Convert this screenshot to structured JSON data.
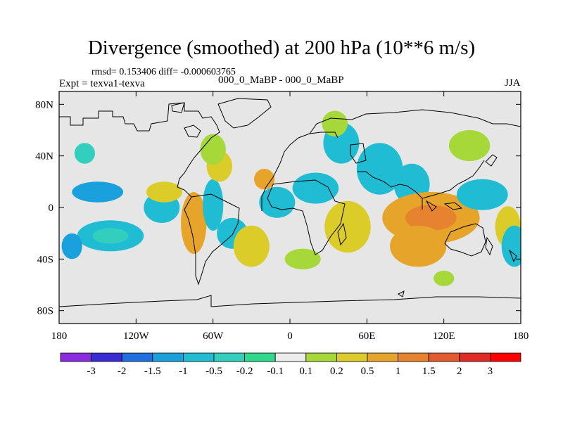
{
  "header": {
    "title": "Divergence (smoothed) at 200 hPa (10**6 m/s)",
    "stats": "rmsd= 0.153406 diff= -0.000603765",
    "experiment": "Expt = texva1-texva",
    "experiment_names": "000_0_MaBP - 000_0_MaBP",
    "season": "JJA"
  },
  "chart_data": {
    "type": "heatmap",
    "title": "Divergence (smoothed) at 200 hPa (10**6 m/s)",
    "xlabel": "",
    "ylabel": "",
    "x_ticks": [
      {
        "value": -180,
        "label": "180"
      },
      {
        "value": -120,
        "label": "120W"
      },
      {
        "value": -60,
        "label": "60W"
      },
      {
        "value": 0,
        "label": "0"
      },
      {
        "value": 60,
        "label": "60E"
      },
      {
        "value": 120,
        "label": "120E"
      },
      {
        "value": 180,
        "label": "180"
      }
    ],
    "y_ticks": [
      {
        "value": 80,
        "label": "80N"
      },
      {
        "value": 40,
        "label": "40N"
      },
      {
        "value": 0,
        "label": "0"
      },
      {
        "value": -40,
        "label": "40S"
      },
      {
        "value": -80,
        "label": "80S"
      }
    ],
    "xlim": [
      -180,
      180
    ],
    "ylim": [
      -90,
      90
    ],
    "colorbar": {
      "labels": [
        "-3",
        "-2",
        "-1.5",
        "-1",
        "-0.5",
        "-0.2",
        "-0.1",
        "0.1",
        "0.2",
        "0.5",
        "1",
        "1.5",
        "2",
        "3"
      ],
      "colors": [
        "#8a2be2",
        "#3b2bd6",
        "#1f6fe0",
        "#1aa0dc",
        "#20bcd4",
        "#33cfbe",
        "#2fd88c",
        "#ececec",
        "#a6d83a",
        "#dccc2a",
        "#e6a42a",
        "#e7822f",
        "#e45a2f",
        "#e02a26",
        "#ff0000"
      ]
    },
    "blobs": [
      {
        "lon": -150,
        "lat": 12,
        "rx": 20,
        "ry": 4,
        "level": 3
      },
      {
        "lon": -140,
        "lat": -22,
        "rx": 26,
        "ry": 6,
        "level": 4
      },
      {
        "lon": -140,
        "lat": -22,
        "rx": 14,
        "ry": 3,
        "level": 5
      },
      {
        "lon": -170,
        "lat": -30,
        "rx": 8,
        "ry": 5,
        "level": 3
      },
      {
        "lon": -100,
        "lat": 0,
        "rx": 14,
        "ry": 6,
        "level": 4
      },
      {
        "lon": -98,
        "lat": 12,
        "rx": 14,
        "ry": 4,
        "level": 9
      },
      {
        "lon": -75,
        "lat": -12,
        "rx": 10,
        "ry": 12,
        "level": 10
      },
      {
        "lon": -60,
        "lat": 2,
        "rx": 8,
        "ry": 10,
        "level": 4
      },
      {
        "lon": -45,
        "lat": -20,
        "rx": 12,
        "ry": 6,
        "level": 4
      },
      {
        "lon": -55,
        "lat": 32,
        "rx": 10,
        "ry": 6,
        "level": 9
      },
      {
        "lon": -20,
        "lat": 22,
        "rx": 8,
        "ry": 4,
        "level": 10
      },
      {
        "lon": -10,
        "lat": 4,
        "rx": 14,
        "ry": 6,
        "level": 4
      },
      {
        "lon": -30,
        "lat": -30,
        "rx": 14,
        "ry": 8,
        "level": 9
      },
      {
        "lon": 20,
        "lat": 15,
        "rx": 18,
        "ry": 6,
        "level": 4
      },
      {
        "lon": 40,
        "lat": 50,
        "rx": 14,
        "ry": 8,
        "level": 4
      },
      {
        "lon": 45,
        "lat": -15,
        "rx": 18,
        "ry": 10,
        "level": 9
      },
      {
        "lon": 70,
        "lat": 30,
        "rx": 18,
        "ry": 10,
        "level": 4
      },
      {
        "lon": 95,
        "lat": 18,
        "rx": 14,
        "ry": 8,
        "level": 4
      },
      {
        "lon": 110,
        "lat": -8,
        "rx": 38,
        "ry": 10,
        "level": 10
      },
      {
        "lon": 110,
        "lat": -8,
        "rx": 20,
        "ry": 5,
        "level": 11
      },
      {
        "lon": 100,
        "lat": -30,
        "rx": 22,
        "ry": 8,
        "level": 10
      },
      {
        "lon": 150,
        "lat": 10,
        "rx": 20,
        "ry": 6,
        "level": 4
      },
      {
        "lon": 140,
        "lat": 48,
        "rx": 16,
        "ry": 6,
        "level": 8
      },
      {
        "lon": 170,
        "lat": -15,
        "rx": 10,
        "ry": 8,
        "level": 9
      },
      {
        "lon": 175,
        "lat": -30,
        "rx": 10,
        "ry": 8,
        "level": 4
      },
      {
        "lon": -160,
        "lat": 42,
        "rx": 8,
        "ry": 4,
        "level": 5
      },
      {
        "lon": -60,
        "lat": 45,
        "rx": 10,
        "ry": 6,
        "level": 8
      },
      {
        "lon": 10,
        "lat": -40,
        "rx": 14,
        "ry": 4,
        "level": 8
      },
      {
        "lon": 120,
        "lat": -55,
        "rx": 8,
        "ry": 3,
        "level": 8
      },
      {
        "lon": 35,
        "lat": 65,
        "rx": 10,
        "ry": 5,
        "level": 8
      }
    ]
  }
}
